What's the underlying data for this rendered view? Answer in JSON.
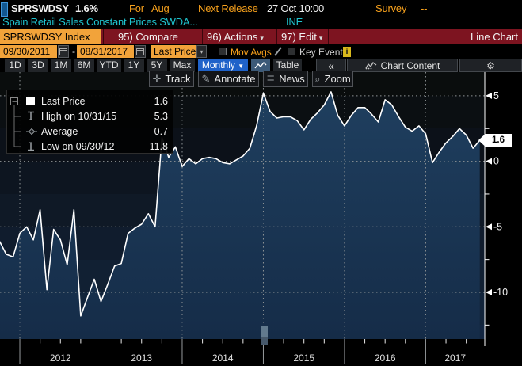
{
  "header": {
    "ticker": "SPRSWDSY",
    "change": "1.6%",
    "for_label": "For",
    "for_value": "Aug",
    "next_release_label": "Next Release",
    "next_release_value": "27 Oct 10:00",
    "survey_label": "Survey",
    "survey_value": "--",
    "description": "Spain Retail Sales Constant Prices SWDA...",
    "source": "INE"
  },
  "menu_bar": {
    "security": "SPRSWDSY Index",
    "compare": "95) Compare",
    "actions": "96) Actions",
    "edit": "97) Edit",
    "right_label": "Line Chart"
  },
  "controls": {
    "date_from": "09/30/2011",
    "date_separator": "-",
    "date_to": "08/31/2017",
    "price_field": "Last Price",
    "mov_avgs_label": "Mov Avgs",
    "key_events_label": "Key Events",
    "info_badge": "i"
  },
  "range_bar": {
    "ranges": [
      "1D",
      "3D",
      "1M",
      "6M",
      "YTD",
      "1Y",
      "5Y",
      "Max"
    ],
    "period": "Monthly",
    "period_caret": "▼",
    "table_label": "Table",
    "collapse_label": "«",
    "chart_content_label": "Chart Content",
    "gear": "⚙"
  },
  "chart_toolbar": {
    "track": "Track",
    "annotate": "Annotate",
    "news": "News",
    "zoom": "Zoom"
  },
  "legend": {
    "rows": [
      {
        "label": "Last Price",
        "value": "1.6"
      },
      {
        "label": "High on 10/31/15",
        "value": "5.3"
      },
      {
        "label": "Average",
        "value": "-0.7"
      },
      {
        "label": "Low on 09/30/12",
        "value": "-11.8"
      }
    ]
  },
  "axis": {
    "last_price_tag": "1.6",
    "y_ticks": [
      "5",
      "0",
      "-5",
      "-10"
    ],
    "years": [
      "2012",
      "2013",
      "2014",
      "2015",
      "2016",
      "2017"
    ]
  },
  "chart_data": {
    "type": "area",
    "x_start": "2011-09",
    "x_end": "2017-08",
    "frequency": "monthly",
    "ylim": [
      -13.6,
      6.8
    ],
    "y_gridlines": [
      5,
      0,
      -5,
      -10
    ],
    "y_minor_ticks": [
      2.5,
      -2.5,
      -7.5,
      -12.5
    ],
    "line_color": "#ffffff",
    "last": 1.6,
    "high": {
      "date": "10/31/15",
      "value": 5.3
    },
    "low": {
      "date": "09/30/12",
      "value": -11.8
    },
    "average": -0.7,
    "values": [
      -6.1,
      -7.1,
      -7.3,
      -5.5,
      -5.0,
      -6.0,
      -3.7,
      -9.8,
      -5.2,
      -6.0,
      -7.9,
      -3.7,
      -11.8,
      -10.4,
      -9.0,
      -10.7,
      -9.4,
      -8.0,
      -7.8,
      -5.5,
      -5.1,
      -4.8,
      -4.0,
      -5.0,
      1.8,
      0.3,
      1.1,
      -0.4,
      0.2,
      -0.2,
      0.2,
      0.3,
      0.2,
      -0.1,
      -0.2,
      0.1,
      0.4,
      1.0,
      2.7,
      5.2,
      3.8,
      3.3,
      3.4,
      3.4,
      3.1,
      2.4,
      3.2,
      3.7,
      4.3,
      5.3,
      3.5,
      2.7,
      3.5,
      4.1,
      4.1,
      3.6,
      3.0,
      4.7,
      4.3,
      3.4,
      2.6,
      2.3,
      2.7,
      2.1,
      -0.1,
      0.7,
      1.4,
      1.9,
      2.5,
      2.0,
      1.0,
      1.6
    ]
  },
  "colors": {
    "orange": "#f7a11c",
    "cyan": "#1fc3ce",
    "red_bar": "#7d1420",
    "amber_field": "#f2a33a",
    "blue_button": "#1f62c9",
    "fill_top": "#1f3f5f",
    "fill_bottom": "#152c48"
  }
}
